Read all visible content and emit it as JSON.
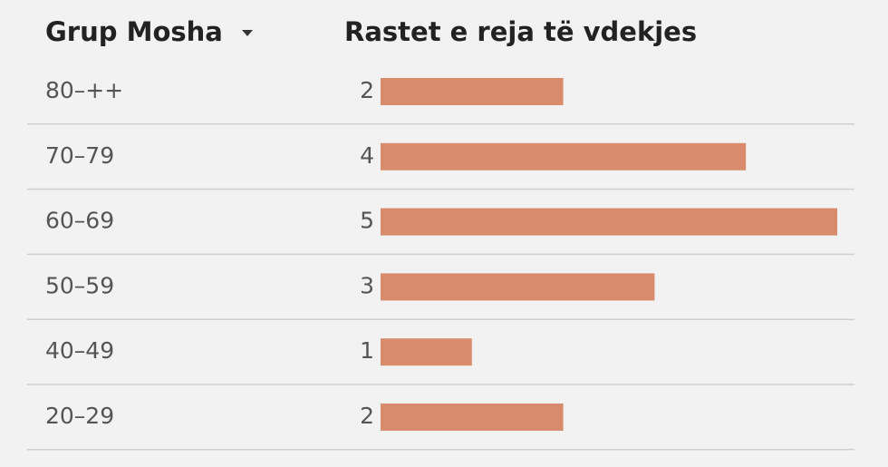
{
  "table": {
    "headers": [
      "Grup Mosha",
      "Rastet e reja të vdekjes"
    ],
    "rows": [
      [
        "80–++",
        2
      ],
      [
        "70–79",
        4
      ],
      [
        "60–69",
        5
      ],
      [
        "50–59",
        3
      ],
      [
        "40–49",
        1
      ],
      [
        "20–29",
        2
      ]
    ]
  }
}
